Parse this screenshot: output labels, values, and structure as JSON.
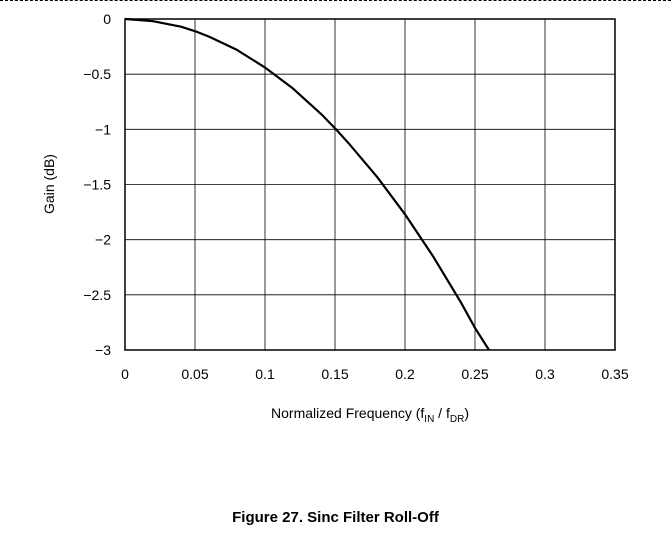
{
  "chart_data": {
    "type": "line",
    "title": "",
    "caption": "Figure 27. Sinc Filter Roll-Off",
    "xlabel": {
      "prefix": "Normalized Frequency (f",
      "sub1": "IN",
      "middle": " / f",
      "sub2": "DR",
      "suffix": ")"
    },
    "ylabel": "Gain (dB)",
    "xlim": [
      0,
      0.35
    ],
    "ylim": [
      -3,
      0
    ],
    "xticks": [
      0,
      0.05,
      0.1,
      0.15,
      0.2,
      0.25,
      0.3,
      0.35
    ],
    "xtick_labels": [
      "0",
      "0.05",
      "0.1",
      "0.15",
      "0.2",
      "0.25",
      "0.3",
      "0.35"
    ],
    "yticks": [
      0,
      -0.5,
      -1,
      -1.5,
      -2,
      -2.5,
      -3
    ],
    "ytick_labels": [
      "0",
      "−0.5",
      "−1",
      "−1.5",
      "−2",
      "−2.5",
      "−3"
    ],
    "grid": true,
    "line_color": "#000000",
    "series": [
      {
        "x": [
          0,
          0.02,
          0.04,
          0.05,
          0.06,
          0.08,
          0.1,
          0.12,
          0.14,
          0.15,
          0.16,
          0.18,
          0.2,
          0.22,
          0.24,
          0.25,
          0.26
        ],
        "y": [
          0,
          -0.02,
          -0.07,
          -0.11,
          -0.16,
          -0.28,
          -0.44,
          -0.63,
          -0.86,
          -0.99,
          -1.13,
          -1.43,
          -1.77,
          -2.15,
          -2.57,
          -2.8,
          -3.0
        ]
      }
    ]
  }
}
